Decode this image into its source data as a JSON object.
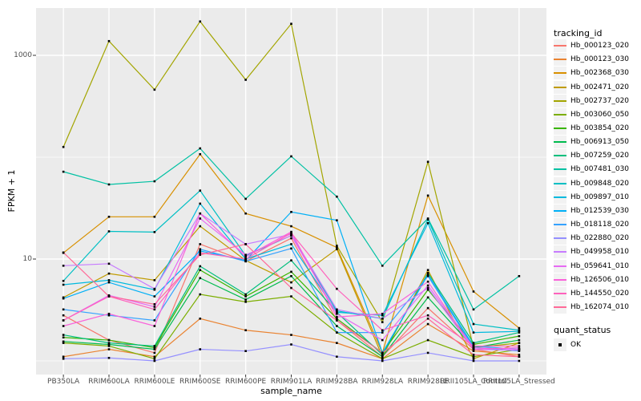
{
  "figure": {
    "panel_bg": "#EBEBEB",
    "grid_color": "#FFFFFF",
    "point_color": "#000000",
    "tick_color": "#333333",
    "tick_label_color": "#4D4D4D"
  },
  "axes": {
    "y_title": "FPKM + 1",
    "x_title": "sample_name",
    "y_tick_labels": [
      {
        "label": "1000",
        "value": 1000
      },
      {
        "label": "10",
        "value": 10
      }
    ]
  },
  "legend": {
    "tracking_title": "tracking_id",
    "quant_title": "quant_status",
    "quant_items": [
      {
        "label": "OK",
        "shape": "black-square"
      }
    ]
  },
  "chart_data": {
    "type": "line",
    "y_scale": "log10",
    "ylabel": "FPKM + 1",
    "xlabel": "sample_name",
    "ylim": [
      0.63,
      3000
    ],
    "y_gridlines_major": [
      10,
      1000
    ],
    "y_gridlines_minor": [
      1,
      100
    ],
    "legend_position": "right",
    "grid": true,
    "point_shape": "filled-square",
    "categories": [
      "PB350LA",
      "RRIM600LA",
      "RRIM600LE",
      "RRIM600SE",
      "RRIM600PE",
      "RRIM901LA",
      "RRIM928BA",
      "RRIM928LA",
      "RRIM928LE",
      "RRII105LA_Control",
      "RRII105LA_Stressed"
    ],
    "series": [
      {
        "name": "Hb_000123_020",
        "color": "#F8766D",
        "values": [
          2.8,
          1.6,
          1.2,
          14,
          9.5,
          16,
          2.5,
          1.1,
          3.3,
          1.3,
          1.1
        ]
      },
      {
        "name": "Hb_000123_030",
        "color": "#EA8331",
        "values": [
          1.1,
          1.3,
          1.1,
          2.6,
          2.0,
          1.8,
          1.5,
          1.05,
          2.3,
          1.25,
          1.15
        ]
      },
      {
        "name": "Hb_002368_030",
        "color": "#D89000",
        "values": [
          11.5,
          26,
          26,
          107,
          28,
          21,
          13,
          1.2,
          42,
          4.8,
          2.1
        ]
      },
      {
        "name": "Hb_002471_020",
        "color": "#C09B00",
        "values": [
          4.2,
          7.2,
          6.2,
          21,
          9.7,
          5.9,
          12.5,
          1.1,
          7.8,
          1.05,
          1.5
        ]
      },
      {
        "name": "Hb_002737_020",
        "color": "#A3A500",
        "values": [
          126,
          1380,
          460,
          2150,
          575,
          2040,
          13.5,
          2.4,
          90,
          1.35,
          1.5
        ]
      },
      {
        "name": "Hb_003060_050",
        "color": "#7CAE00",
        "values": [
          1.5,
          1.4,
          1.05,
          4.5,
          3.8,
          4.3,
          1.9,
          1.05,
          1.6,
          1.1,
          1.3
        ]
      },
      {
        "name": "Hb_003854_020",
        "color": "#39B600",
        "values": [
          1.7,
          1.6,
          1.35,
          7.8,
          4.3,
          7.5,
          2.6,
          1.2,
          5.0,
          1.45,
          1.75
        ]
      },
      {
        "name": "Hb_006913_050",
        "color": "#00BB4E",
        "values": [
          1.55,
          1.45,
          1.3,
          6.5,
          4.0,
          6.8,
          2.2,
          1.1,
          4.2,
          1.35,
          1.6
        ]
      },
      {
        "name": "Hb_007259_020",
        "color": "#00BF7D",
        "values": [
          1.8,
          1.5,
          1.4,
          8.5,
          4.5,
          9.7,
          3.0,
          1.15,
          7.3,
          1.5,
          1.9
        ]
      },
      {
        "name": "Hb_007481_030",
        "color": "#00C1A3",
        "values": [
          72,
          54,
          58,
          122,
          39,
          102,
          41,
          8.6,
          25,
          3.2,
          6.8
        ]
      },
      {
        "name": "Hb_009848_020",
        "color": "#00BFC4",
        "values": [
          6.1,
          18.7,
          18.4,
          47,
          10.8,
          17,
          3.1,
          2.6,
          24.5,
          2.3,
          2.0
        ]
      },
      {
        "name": "Hb_009897_010",
        "color": "#00BADE",
        "values": [
          5.6,
          6.2,
          5.0,
          35,
          10,
          14,
          3.0,
          2.8,
          22.5,
          1.9,
          1.95
        ]
      },
      {
        "name": "Hb_012539_030",
        "color": "#00B0F6",
        "values": [
          4.1,
          5.9,
          4.3,
          12,
          9.7,
          29,
          24,
          1.2,
          7.0,
          1.4,
          1.3
        ]
      },
      {
        "name": "Hb_018118_020",
        "color": "#35A2FF",
        "values": [
          3.2,
          2.8,
          2.5,
          12.5,
          9.5,
          12.7,
          1.9,
          1.9,
          6.8,
          1.35,
          1.25
        ]
      },
      {
        "name": "Hb_022880_020",
        "color": "#9590FF",
        "values": [
          1.05,
          1.07,
          1.0,
          1.3,
          1.25,
          1.45,
          1.1,
          1.0,
          1.2,
          1.0,
          1.0
        ]
      },
      {
        "name": "Hb_049958_010",
        "color": "#C77CFF",
        "values": [
          8.6,
          9.0,
          5.1,
          28,
          14,
          17.5,
          3.2,
          2.6,
          5.2,
          1.3,
          1.27
        ]
      },
      {
        "name": "Hb_059641_010",
        "color": "#E76BF3",
        "values": [
          2.5,
          4.4,
          3.4,
          25,
          11,
          17,
          2.9,
          1.6,
          5.5,
          1.35,
          1.3
        ]
      },
      {
        "name": "Hb_126506_010",
        "color": "#FA62DB",
        "values": [
          2.2,
          2.9,
          2.2,
          28,
          10.5,
          18.5,
          2.7,
          2.9,
          6.0,
          1.3,
          1.35
        ]
      },
      {
        "name": "Hb_144550_020",
        "color": "#FF62BC",
        "values": [
          2.5,
          4.3,
          3.2,
          11.5,
          10,
          18,
          5.1,
          2.0,
          2.8,
          1.4,
          1.4
        ]
      },
      {
        "name": "Hb_162074_010",
        "color": "#FF6A98",
        "values": [
          11.6,
          4.3,
          3.6,
          11,
          14,
          5.2,
          2.5,
          1.2,
          2.6,
          1.15,
          1.1
        ]
      }
    ]
  }
}
